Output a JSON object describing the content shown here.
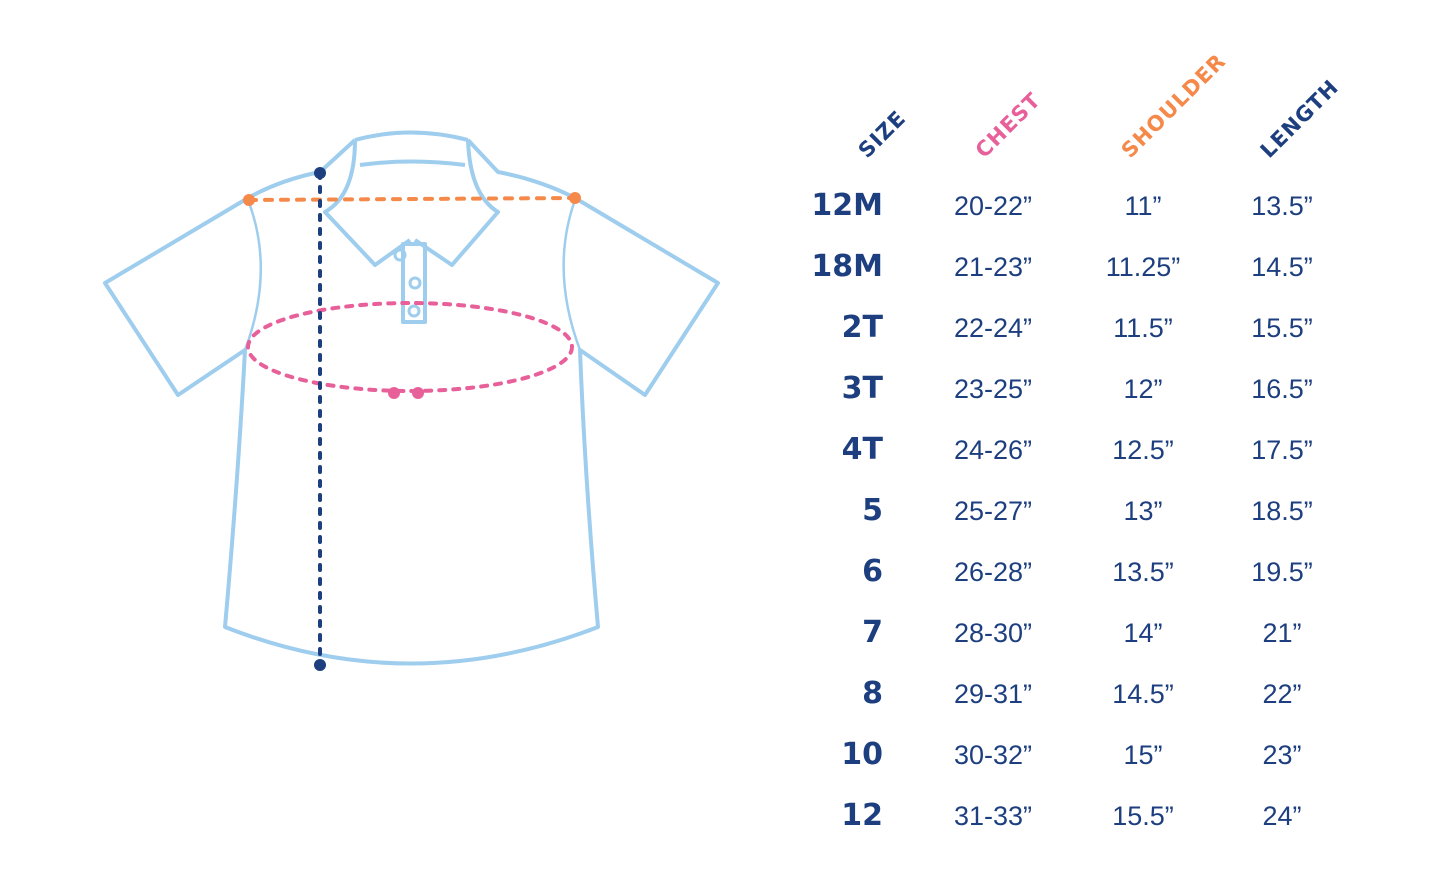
{
  "colors": {
    "navy": "#1d3f7f",
    "pink": "#e8609a",
    "orange": "#f5894a",
    "shirt": "#9ecdee"
  },
  "chart_data": {
    "type": "table",
    "columns": [
      {
        "label": "SIZE",
        "color": "#1d3f7f"
      },
      {
        "label": "CHEST",
        "color": "#e8609a"
      },
      {
        "label": "SHOULDER",
        "color": "#f5894a"
      },
      {
        "label": "LENGTH",
        "color": "#1d3f7f"
      }
    ],
    "rows": [
      [
        "12M",
        "20-22”",
        "11”",
        "13.5”"
      ],
      [
        "18M",
        "21-23”",
        "11.25”",
        "14.5”"
      ],
      [
        "2T",
        "22-24”",
        "11.5”",
        "15.5”"
      ],
      [
        "3T",
        "23-25”",
        "12”",
        "16.5”"
      ],
      [
        "4T",
        "24-26”",
        "12.5”",
        "17.5”"
      ],
      [
        "5",
        "25-27”",
        "13”",
        "18.5”"
      ],
      [
        "6",
        "26-28”",
        "13.5”",
        "19.5”"
      ],
      [
        "7",
        "28-30”",
        "14”",
        "21”"
      ],
      [
        "8",
        "29-31”",
        "14.5”",
        "22”"
      ],
      [
        "10",
        "30-32”",
        "15”",
        "23”"
      ],
      [
        "12",
        "31-33”",
        "15.5”",
        "24”"
      ]
    ]
  },
  "diagram": {
    "garment": "polo shirt",
    "measures": [
      "shoulder",
      "chest",
      "length"
    ]
  }
}
